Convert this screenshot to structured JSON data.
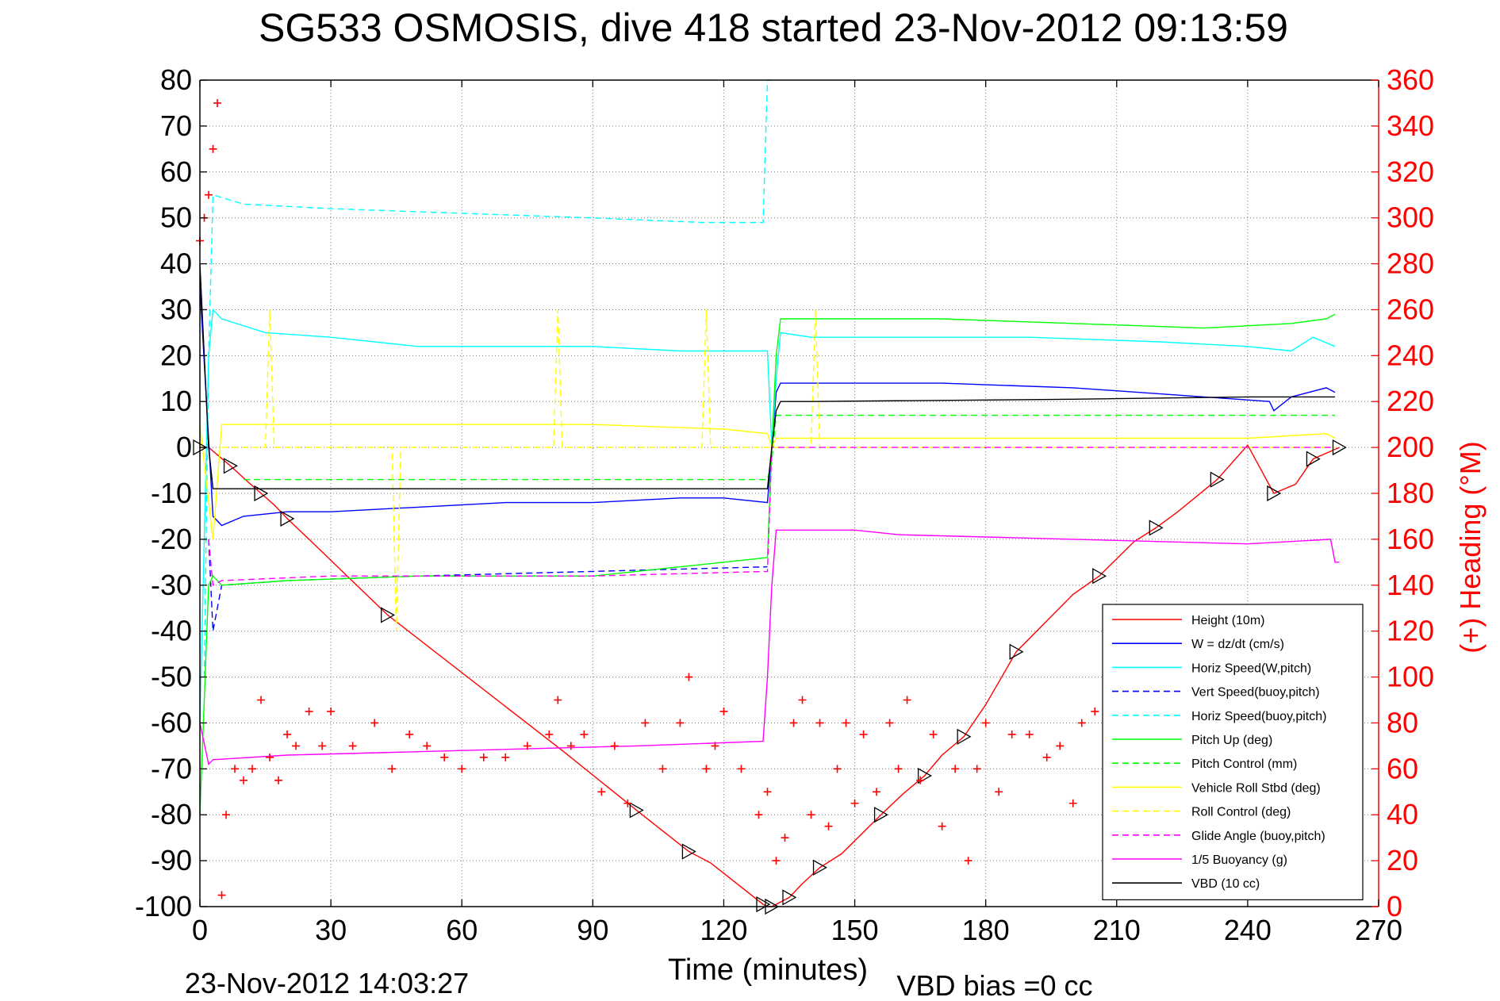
{
  "title": "SG533 OSMOSIS, dive 418 started 23-Nov-2012 09:13:59",
  "footer_left": "23-Nov-2012 14:03:27",
  "footer_right": "VBD bias =0 cc",
  "colors": {
    "height": "#ff0000",
    "w": "#0000ff",
    "horiz": "#00ffff",
    "pitch": "#00ff00",
    "roll": "#ffff00",
    "glide": "#ff00ff",
    "buoy": "#ff00ff",
    "vbd": "#000000",
    "heading": "#ff0000"
  },
  "chart_data": {
    "type": "line",
    "xlabel": "Time (minutes)",
    "ylabel": "",
    "y2label": "(+) Heading (°M)",
    "xlim": [
      0,
      270
    ],
    "ylim": [
      -100,
      80
    ],
    "y2lim": [
      0,
      360
    ],
    "xticks": [
      "0",
      "30",
      "60",
      "90",
      "120",
      "150",
      "180",
      "210",
      "240",
      "270"
    ],
    "yticks": [
      "80",
      "70",
      "60",
      "50",
      "40",
      "30",
      "20",
      "10",
      "0",
      "-10",
      "-20",
      "-30",
      "-40",
      "-50",
      "-60",
      "-70",
      "-80",
      "-90",
      "-100"
    ],
    "y2ticks": [
      "360",
      "340",
      "320",
      "300",
      "280",
      "260",
      "240",
      "220",
      "200",
      "180",
      "160",
      "140",
      "120",
      "100",
      "80",
      "60",
      "40",
      "20",
      "0"
    ],
    "grid": true,
    "legend_position": "lower-right",
    "series": [
      {
        "name": "Height (10m)",
        "style": "solid",
        "color": "#ff0000",
        "x": [
          0,
          2,
          7,
          11,
          14,
          17,
          20,
          25,
          43,
          83,
          100,
          108,
          112,
          117,
          129,
          130,
          131,
          132,
          135,
          138,
          142,
          147,
          156,
          161,
          166,
          170,
          175,
          180,
          187,
          200,
          206,
          214,
          219,
          224,
          233,
          240,
          246,
          251,
          255,
          261
        ],
        "y": [
          0,
          0,
          -4,
          -7.5,
          -10,
          -12.5,
          -15.5,
          -20,
          -36.5,
          -66,
          -79,
          -85,
          -88,
          -90.5,
          -99.5,
          -100,
          -100,
          -99.5,
          -98,
          -95,
          -91.5,
          -88.5,
          -80,
          -75.5,
          -71.5,
          -67,
          -63,
          -56,
          -44.5,
          -32,
          -28,
          -20.5,
          -17.5,
          -14,
          -7,
          0.5,
          -10,
          -8,
          -2.5,
          0
        ]
      },
      {
        "name": "W = dz/dt (cm/s)",
        "style": "solid",
        "color": "#0000ff",
        "x": [
          0,
          1.5,
          3,
          5,
          10,
          20,
          30,
          50,
          70,
          90,
          110,
          120,
          130,
          131,
          132,
          133,
          140,
          150,
          170,
          200,
          230,
          245,
          246,
          250,
          258,
          260
        ],
        "y": [
          35,
          10,
          -15,
          -17,
          -15,
          -14,
          -14,
          -13,
          -12,
          -12,
          -11,
          -11,
          -12,
          0,
          12,
          14,
          14,
          14,
          14,
          13,
          11,
          10,
          8,
          11,
          13,
          12
        ]
      },
      {
        "name": "Horiz Speed(W,pitch)",
        "style": "solid",
        "color": "#00ffff",
        "x": [
          0,
          2,
          3,
          5,
          15,
          30,
          50,
          70,
          90,
          110,
          120,
          130,
          131,
          132,
          133,
          140,
          160,
          190,
          220,
          240,
          250,
          255,
          260
        ],
        "y": [
          -60,
          20,
          30,
          28,
          25,
          24,
          22,
          22,
          22,
          21,
          21,
          21,
          0,
          15,
          25,
          24,
          24,
          24,
          23,
          22,
          21,
          24,
          22
        ]
      },
      {
        "name": "Vert Speed(buoy,pitch)",
        "style": "dashed",
        "color": "#0000ff",
        "x": [
          2,
          3,
          5,
          20,
          50,
          90,
          130
        ],
        "y": [
          -20,
          -40,
          -30,
          -29,
          -28,
          -27,
          -26
        ]
      },
      {
        "name": "Horiz Speed(buoy,pitch)",
        "style": "dashed",
        "color": "#00ffff",
        "x": [
          1,
          2,
          3,
          10,
          30,
          60,
          90,
          115,
          129,
          130,
          131
        ],
        "y": [
          -50,
          20,
          55,
          53,
          52,
          51,
          50,
          49,
          49,
          80,
          80
        ]
      },
      {
        "name": "Pitch Up (deg)",
        "style": "solid",
        "color": "#00ff00",
        "x": [
          0,
          2,
          3,
          5,
          20,
          50,
          90,
          110,
          120,
          130,
          131,
          132,
          133,
          140,
          170,
          200,
          230,
          250,
          258,
          260
        ],
        "y": [
          -80,
          -30,
          -28,
          -30,
          -29,
          -28,
          -28,
          -26,
          -25,
          -24,
          0,
          20,
          28,
          28,
          28,
          27,
          26,
          27,
          28,
          29
        ]
      },
      {
        "name": "Pitch Control (mm)",
        "style": "dashed",
        "color": "#00ff00",
        "x": [
          10,
          130,
          131,
          132,
          260
        ],
        "y": [
          -7,
          -7,
          -3,
          7,
          7
        ]
      },
      {
        "name": "Vehicle Roll Stbd (deg)",
        "style": "solid",
        "color": "#ffff00",
        "x": [
          0,
          3,
          5,
          20,
          50,
          90,
          120,
          130,
          131,
          132,
          150,
          200,
          240,
          258,
          260
        ],
        "y": [
          5,
          -20,
          5,
          5,
          5,
          5,
          4,
          3,
          0,
          2,
          2,
          2,
          2,
          3,
          2
        ]
      },
      {
        "name": "Roll Control (deg)",
        "style": "dashed",
        "color": "#ffff00",
        "x": [
          5,
          15,
          16,
          17,
          18,
          44,
          45,
          46,
          81,
          82,
          83,
          115,
          116,
          117,
          131,
          140,
          141,
          142,
          200,
          240,
          260
        ],
        "y": [
          0,
          0,
          30,
          0,
          0,
          0,
          -40,
          0,
          0,
          30,
          0,
          0,
          30,
          0,
          0,
          0,
          30,
          0,
          0,
          0,
          0
        ]
      },
      {
        "name": "Glide Angle (buoy,pitch)",
        "style": "dashed",
        "color": "#ff00ff",
        "x": [
          2,
          3,
          5,
          30,
          60,
          90,
          130,
          131,
          132,
          200,
          260
        ],
        "y": [
          -20,
          -30,
          -29,
          -28,
          -28,
          -28,
          -27,
          0,
          0,
          0,
          0
        ]
      },
      {
        "name": "1/5 Buoyancy (g)",
        "style": "solid",
        "color": "#ff00ff",
        "x": [
          0,
          2,
          3,
          20,
          60,
          100,
          129,
          130,
          131,
          132,
          150,
          160,
          200,
          240,
          259,
          260,
          261
        ],
        "y": [
          -60,
          -69,
          -68,
          -67,
          -66,
          -65,
          -64,
          -50,
          -30,
          -18,
          -18,
          -19,
          -20,
          -21,
          -20,
          -25,
          -25
        ]
      },
      {
        "name": "VBD (10 cc)",
        "style": "solid",
        "color": "#000000",
        "x": [
          0,
          1,
          2,
          3,
          30,
          60,
          90,
          120,
          130,
          131,
          132,
          133,
          140,
          200,
          240,
          260
        ],
        "y": [
          40,
          20,
          0,
          -9,
          -9,
          -9,
          -9,
          -9,
          -9,
          0,
          8,
          10,
          10,
          10.5,
          11,
          11
        ]
      }
    ],
    "heading": {
      "name": "(+) Heading",
      "axis": "right",
      "marker": "+",
      "color": "#ff0000",
      "x": [
        0,
        1,
        2,
        3,
        4,
        5,
        6,
        8,
        10,
        12,
        14,
        16,
        18,
        20,
        22,
        25,
        28,
        30,
        35,
        40,
        44,
        48,
        52,
        56,
        60,
        65,
        70,
        75,
        80,
        82,
        85,
        88,
        92,
        95,
        98,
        102,
        106,
        110,
        112,
        116,
        118,
        120,
        124,
        128,
        130,
        132,
        134,
        136,
        138,
        140,
        142,
        144,
        146,
        148,
        150,
        152,
        155,
        158,
        160,
        162,
        165,
        168,
        170,
        173,
        176,
        178,
        180,
        183,
        186,
        190,
        194,
        197,
        200,
        202,
        205,
        208,
        210
      ],
      "y": [
        290,
        300,
        310,
        330,
        350,
        5,
        40,
        60,
        55,
        60,
        90,
        65,
        55,
        75,
        70,
        85,
        70,
        85,
        70,
        80,
        60,
        75,
        70,
        65,
        60,
        65,
        65,
        70,
        75,
        90,
        70,
        75,
        50,
        70,
        45,
        80,
        60,
        80,
        100,
        60,
        70,
        85,
        60,
        40,
        50,
        20,
        30,
        80,
        90,
        40,
        80,
        35,
        60,
        80,
        45,
        75,
        50,
        80,
        60,
        90,
        55,
        75,
        35,
        60,
        20,
        60,
        80,
        50,
        75,
        75,
        65,
        70,
        45,
        80,
        85,
        80,
        85
      ]
    },
    "legend": [
      "Height (10m)",
      "W = dz/dt (cm/s)",
      "Horiz Speed(W,pitch)",
      "Vert Speed(buoy,pitch)",
      "Horiz Speed(buoy,pitch)",
      "Pitch Up (deg)",
      "Pitch Control (mm)",
      "Vehicle Roll Stbd (deg)",
      "Roll Control (deg)",
      "Glide Angle (buoy,pitch)",
      "1/5 Buoyancy (g)",
      "VBD (10 cc)"
    ]
  }
}
